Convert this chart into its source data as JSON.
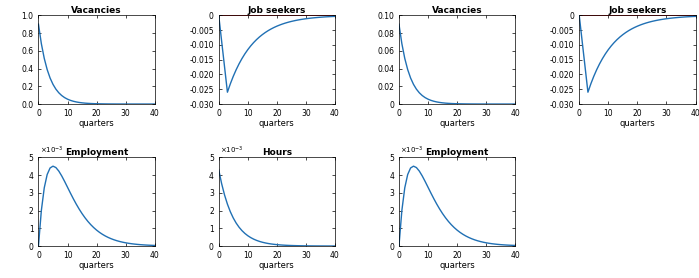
{
  "n_quarters": 41,
  "blue_color": "#2070b4",
  "red_color": "#cc2020",
  "line_width": 1.0,
  "title_fontsize": 6.5,
  "tick_fontsize": 5.5,
  "xlabel": "quarters",
  "xlabel_fontsize": 6.0,
  "panel_titles_left": [
    "Vacancies",
    "Job seekers",
    "Employment",
    "Hours"
  ],
  "panel_titles_right": [
    "Vacancies",
    "Job seekers",
    "Employment"
  ]
}
